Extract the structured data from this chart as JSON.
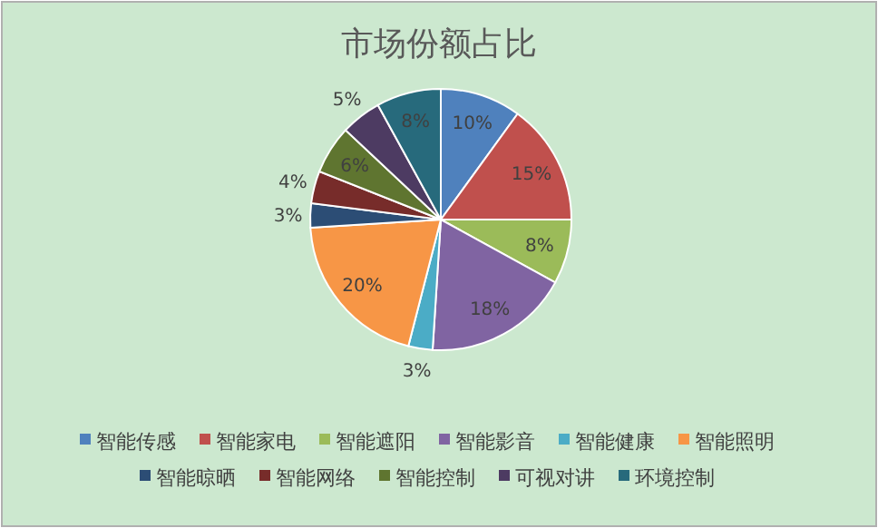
{
  "chart_data": {
    "type": "pie",
    "title": "市场份额占比",
    "categories": [
      "智能传感",
      "智能家电",
      "智能遮阳",
      "智能影音",
      "智能健康",
      "智能照明",
      "智能晾晒",
      "智能网络",
      "智能控制",
      "可视对讲",
      "环境控制"
    ],
    "values": [
      10,
      15,
      8,
      18,
      3,
      20,
      3,
      4,
      6,
      5,
      8
    ],
    "colors": [
      "#4f81bd",
      "#c0504d",
      "#9bbb59",
      "#8064a2",
      "#4bacc6",
      "#f79646",
      "#2c4d75",
      "#772c2a",
      "#5f7530",
      "#4d3b62",
      "#276a7c"
    ],
    "value_labels": [
      "10%",
      "15%",
      "8%",
      "18%",
      "3%",
      "20%",
      "3%",
      "4%",
      "6%",
      "5%",
      "8%"
    ],
    "legend": "bottom"
  }
}
